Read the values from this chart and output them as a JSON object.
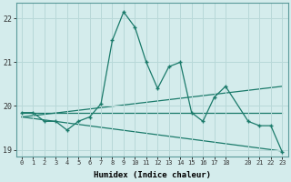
{
  "title": "",
  "xlabel": "Humidex (Indice chaleur)",
  "bg_color": "#d4ecec",
  "grid_color": "#b8d8d8",
  "line_color": "#1a7a6a",
  "xlim": [
    -0.5,
    23.5
  ],
  "ylim": [
    18.85,
    22.35
  ],
  "yticks": [
    19,
    20,
    21,
    22
  ],
  "xticks": [
    0,
    1,
    2,
    3,
    4,
    5,
    6,
    7,
    8,
    9,
    10,
    11,
    12,
    13,
    14,
    15,
    16,
    17,
    18,
    20,
    21,
    22,
    23
  ],
  "series1_x": [
    0,
    1,
    2,
    3,
    4,
    5,
    6,
    7,
    8,
    9,
    10,
    11,
    12,
    13,
    14,
    15,
    16,
    17,
    18,
    20,
    21,
    22,
    23
  ],
  "series1_y": [
    19.85,
    19.85,
    19.65,
    19.65,
    19.45,
    19.65,
    19.75,
    20.05,
    21.5,
    22.15,
    21.8,
    21.0,
    20.4,
    20.9,
    21.0,
    19.85,
    19.65,
    20.2,
    20.45,
    19.65,
    19.55,
    19.55,
    18.95
  ],
  "series2_x": [
    0,
    23
  ],
  "series2_y": [
    19.85,
    19.85
  ],
  "series3_x": [
    0,
    23
  ],
  "series3_y": [
    19.75,
    18.97
  ],
  "series4_x": [
    0,
    23
  ],
  "series4_y": [
    19.75,
    20.45
  ]
}
